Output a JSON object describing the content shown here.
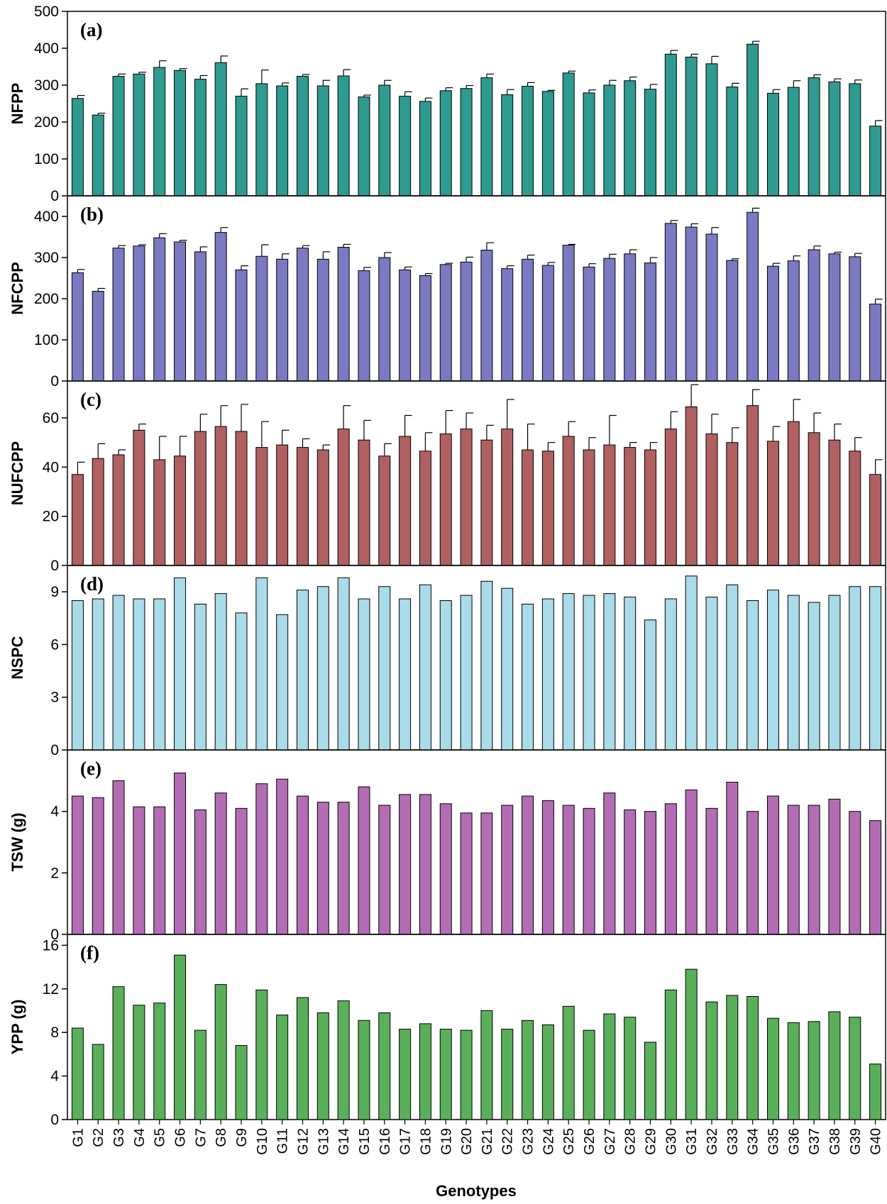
{
  "x_axis": {
    "label": "Genotypes",
    "categories": [
      "G1",
      "G2",
      "G3",
      "G4",
      "G5",
      "G6",
      "G7",
      "G8",
      "G9",
      "G10",
      "G11",
      "G12",
      "G13",
      "G14",
      "G15",
      "G16",
      "G17",
      "G18",
      "G19",
      "G20",
      "G21",
      "G22",
      "G23",
      "G24",
      "G25",
      "G26",
      "G27",
      "G28",
      "G29",
      "G30",
      "G31",
      "G32",
      "G33",
      "G34",
      "G35",
      "G36",
      "G37",
      "G38",
      "G39",
      "G40"
    ]
  },
  "chart_data": [
    {
      "type": "bar",
      "panel_label": "(a)",
      "ylabel": "NFPP",
      "ylim": [
        0,
        500
      ],
      "yticks": [
        "0",
        "100",
        "200",
        "300",
        "400",
        "500"
      ],
      "color": "#2e9a90",
      "categories": [
        "G1",
        "G2",
        "G3",
        "G4",
        "G5",
        "G6",
        "G7",
        "G8",
        "G9",
        "G10",
        "G11",
        "G12",
        "G13",
        "G14",
        "G15",
        "G16",
        "G17",
        "G18",
        "G19",
        "G20",
        "G21",
        "G22",
        "G23",
        "G24",
        "G25",
        "G26",
        "G27",
        "G28",
        "G29",
        "G30",
        "G31",
        "G32",
        "G33",
        "G34",
        "G35",
        "G36",
        "G37",
        "G38",
        "G39",
        "G40"
      ],
      "values": [
        264,
        219,
        324,
        330,
        348,
        340,
        316,
        361,
        270,
        304,
        298,
        324,
        298,
        325,
        268,
        300,
        270,
        256,
        285,
        291,
        320,
        274,
        297,
        283,
        333,
        279,
        300,
        312,
        289,
        384,
        376,
        358,
        295,
        411,
        278,
        294,
        320,
        309,
        304,
        189
      ],
      "errors": [
        8,
        5,
        6,
        5,
        18,
        5,
        10,
        18,
        20,
        37,
        8,
        5,
        15,
        17,
        5,
        13,
        12,
        9,
        8,
        8,
        10,
        14,
        10,
        3,
        5,
        8,
        13,
        10,
        13,
        10,
        8,
        20,
        10,
        8,
        10,
        18,
        8,
        8,
        10,
        15
      ]
    },
    {
      "type": "bar",
      "panel_label": "(b)",
      "ylabel": "NFCPP",
      "ylim": [
        0,
        450
      ],
      "yticks": [
        "0",
        "100",
        "200",
        "300",
        "400"
      ],
      "color": "#7b79c2",
      "categories": [
        "G1",
        "G2",
        "G3",
        "G4",
        "G5",
        "G6",
        "G7",
        "G8",
        "G9",
        "G10",
        "G11",
        "G12",
        "G13",
        "G14",
        "G15",
        "G16",
        "G17",
        "G18",
        "G19",
        "G20",
        "G21",
        "G22",
        "G23",
        "G24",
        "G25",
        "G26",
        "G27",
        "G28",
        "G29",
        "G30",
        "G31",
        "G32",
        "G33",
        "G34",
        "G35",
        "G36",
        "G37",
        "G38",
        "G39",
        "G40"
      ],
      "values": [
        263,
        218,
        323,
        328,
        348,
        338,
        314,
        361,
        270,
        303,
        296,
        323,
        296,
        325,
        268,
        300,
        270,
        256,
        283,
        289,
        318,
        273,
        296,
        281,
        330,
        277,
        298,
        309,
        287,
        383,
        374,
        357,
        293,
        410,
        279,
        292,
        319,
        309,
        302,
        187
      ],
      "errors": [
        8,
        7,
        6,
        3,
        10,
        4,
        12,
        12,
        10,
        28,
        13,
        6,
        18,
        7,
        8,
        12,
        7,
        5,
        3,
        12,
        18,
        7,
        10,
        7,
        2,
        8,
        10,
        10,
        13,
        7,
        8,
        16,
        4,
        10,
        7,
        12,
        9,
        4,
        8,
        12
      ]
    },
    {
      "type": "bar",
      "panel_label": "(c)",
      "ylabel": "NUFCPP",
      "ylim": [
        0,
        75
      ],
      "yticks": [
        "0",
        "20",
        "40",
        "60"
      ],
      "color": "#b06060",
      "categories": [
        "G1",
        "G2",
        "G3",
        "G4",
        "G5",
        "G6",
        "G7",
        "G8",
        "G9",
        "G10",
        "G11",
        "G12",
        "G13",
        "G14",
        "G15",
        "G16",
        "G17",
        "G18",
        "G19",
        "G20",
        "G21",
        "G22",
        "G23",
        "G24",
        "G25",
        "G26",
        "G27",
        "G28",
        "G29",
        "G30",
        "G31",
        "G32",
        "G33",
        "G34",
        "G35",
        "G36",
        "G37",
        "G38",
        "G39",
        "G40"
      ],
      "values": [
        37,
        43.5,
        45,
        55,
        43,
        44.5,
        54.5,
        56.5,
        54.5,
        48,
        49,
        48,
        47,
        55.5,
        51,
        44.5,
        52.5,
        46.5,
        53.5,
        55.5,
        51,
        55.5,
        47,
        46.5,
        52.5,
        47,
        49,
        48,
        47,
        55.5,
        64.5,
        53.5,
        50,
        65,
        50.5,
        58.5,
        54,
        51,
        46.5,
        37
      ],
      "errors": [
        5,
        6,
        2,
        2.5,
        9.5,
        8,
        7,
        8.5,
        11,
        10.5,
        6,
        3.5,
        2,
        9.5,
        8,
        5,
        8.5,
        7.5,
        9.5,
        6.5,
        6,
        12,
        10.5,
        3.5,
        6,
        5,
        12,
        2,
        3,
        7,
        9,
        8,
        6,
        6.5,
        6,
        9,
        8,
        6.5,
        5.5,
        6
      ]
    },
    {
      "type": "bar",
      "panel_label": "(d)",
      "ylabel": "NSPC",
      "ylim": [
        0,
        10.5
      ],
      "yticks": [
        "0",
        "3",
        "6",
        "9"
      ],
      "color": "#a9dbe8",
      "categories": [
        "G1",
        "G2",
        "G3",
        "G4",
        "G5",
        "G6",
        "G7",
        "G8",
        "G9",
        "G10",
        "G11",
        "G12",
        "G13",
        "G14",
        "G15",
        "G16",
        "G17",
        "G18",
        "G19",
        "G20",
        "G21",
        "G22",
        "G23",
        "G24",
        "G25",
        "G26",
        "G27",
        "G28",
        "G29",
        "G30",
        "G31",
        "G32",
        "G33",
        "G34",
        "G35",
        "G36",
        "G37",
        "G38",
        "G39",
        "G40"
      ],
      "values": [
        8.5,
        8.6,
        8.8,
        8.6,
        8.6,
        9.8,
        8.3,
        8.9,
        7.8,
        9.8,
        7.7,
        9.1,
        9.3,
        9.8,
        8.6,
        9.3,
        8.6,
        9.4,
        8.5,
        8.8,
        9.6,
        9.2,
        8.3,
        8.6,
        8.9,
        8.8,
        8.9,
        8.7,
        7.4,
        8.6,
        9.9,
        8.7,
        9.4,
        8.5,
        9.1,
        8.8,
        8.4,
        8.8,
        9.3,
        9.3
      ]
    },
    {
      "type": "bar",
      "panel_label": "(e)",
      "ylabel": "TSW (g)",
      "ylim": [
        0,
        6
      ],
      "yticks": [
        "0",
        "2",
        "4"
      ],
      "color": "#b46db4",
      "categories": [
        "G1",
        "G2",
        "G3",
        "G4",
        "G5",
        "G6",
        "G7",
        "G8",
        "G9",
        "G10",
        "G11",
        "G12",
        "G13",
        "G14",
        "G15",
        "G16",
        "G17",
        "G18",
        "G19",
        "G20",
        "G21",
        "G22",
        "G23",
        "G24",
        "G25",
        "G26",
        "G27",
        "G28",
        "G29",
        "G30",
        "G31",
        "G32",
        "G33",
        "G34",
        "G35",
        "G36",
        "G37",
        "G38",
        "G39",
        "G40"
      ],
      "values": [
        4.5,
        4.45,
        5.0,
        4.15,
        4.15,
        5.25,
        4.05,
        4.6,
        4.1,
        4.9,
        5.05,
        4.5,
        4.3,
        4.3,
        4.8,
        4.2,
        4.55,
        4.55,
        4.25,
        3.95,
        3.95,
        4.2,
        4.5,
        4.35,
        4.2,
        4.1,
        4.6,
        4.05,
        4.0,
        4.25,
        4.7,
        4.1,
        4.95,
        4.0,
        4.5,
        4.2,
        4.2,
        4.4,
        4.0,
        3.7
      ]
    },
    {
      "type": "bar",
      "panel_label": "(f)",
      "ylabel": "YPP (g)",
      "ylim": [
        0,
        17
      ],
      "yticks": [
        "0",
        "4",
        "8",
        "12",
        "16"
      ],
      "color": "#5ab05a",
      "categories": [
        "G1",
        "G2",
        "G3",
        "G4",
        "G5",
        "G6",
        "G7",
        "G8",
        "G9",
        "G10",
        "G11",
        "G12",
        "G13",
        "G14",
        "G15",
        "G16",
        "G17",
        "G18",
        "G19",
        "G20",
        "G21",
        "G22",
        "G23",
        "G24",
        "G25",
        "G26",
        "G27",
        "G28",
        "G29",
        "G30",
        "G31",
        "G32",
        "G33",
        "G34",
        "G35",
        "G36",
        "G37",
        "G38",
        "G39",
        "G40"
      ],
      "values": [
        8.4,
        6.9,
        12.2,
        10.5,
        10.7,
        15.1,
        8.2,
        12.4,
        6.8,
        11.9,
        9.6,
        11.2,
        9.8,
        10.9,
        9.1,
        9.8,
        8.3,
        8.8,
        8.3,
        8.2,
        10.0,
        8.3,
        9.1,
        8.7,
        10.4,
        8.2,
        9.7,
        9.4,
        7.1,
        11.9,
        13.8,
        10.8,
        11.4,
        11.3,
        9.3,
        8.9,
        9.0,
        9.9,
        9.4,
        5.1
      ]
    }
  ]
}
